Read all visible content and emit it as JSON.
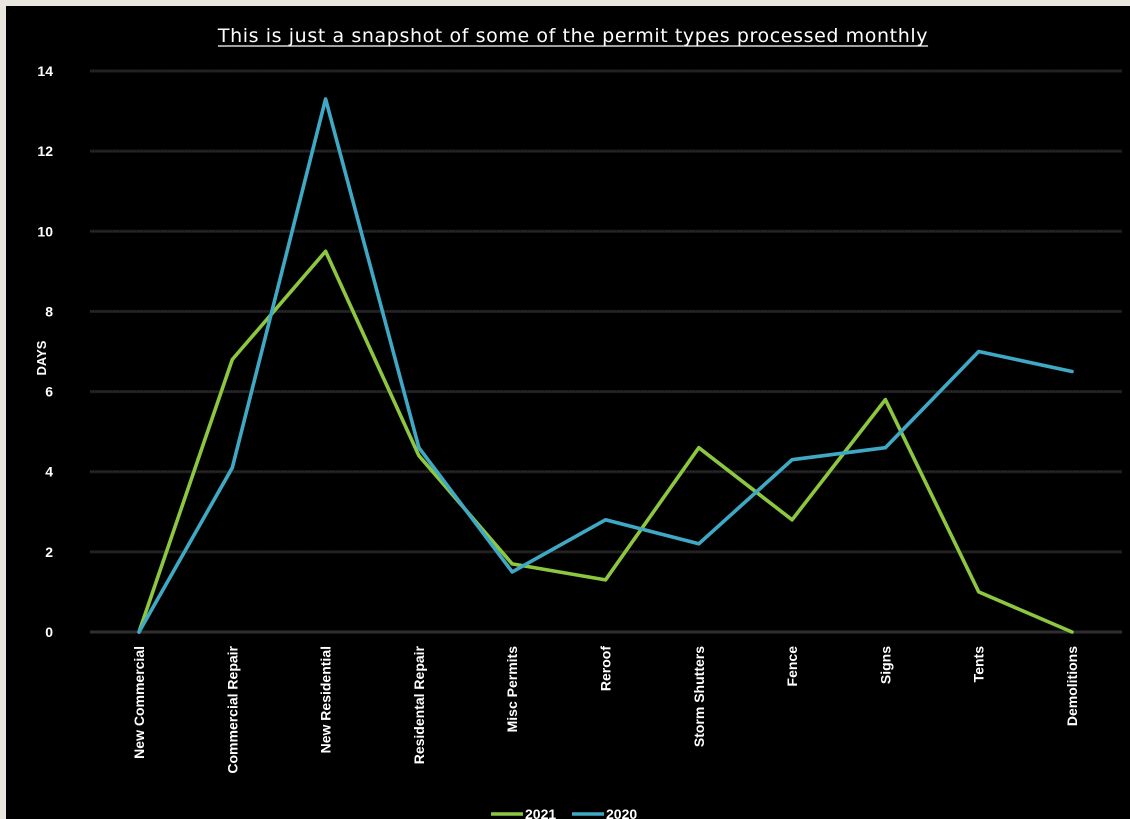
{
  "chart_data": {
    "type": "line",
    "title": "This is just a snapshot of some of the permit types processed monthly",
    "xlabel": "",
    "ylabel": "DAYS",
    "categories": [
      "New Commercial",
      "Commercial Repair",
      "New Residential",
      "Residental Repair",
      "Misc Permits",
      "Reroof",
      "Storm Shutters",
      "Fence",
      "Signs",
      "Tents",
      "Demolitions"
    ],
    "ylim": [
      0,
      14
    ],
    "yticks": [
      0,
      2,
      4,
      6,
      8,
      10,
      12,
      14
    ],
    "grid": true,
    "legend": "bottom",
    "series": [
      {
        "name": "2021",
        "color": "#8dc63f",
        "values": [
          0,
          6.8,
          9.5,
          4.4,
          1.7,
          1.3,
          4.6,
          2.8,
          5.8,
          1.0,
          0
        ]
      },
      {
        "name": "2020",
        "color": "#3fa9c5",
        "values": [
          0,
          4.1,
          13.3,
          4.6,
          1.5,
          2.8,
          2.2,
          4.3,
          4.6,
          7.0,
          6.5
        ]
      }
    ]
  }
}
